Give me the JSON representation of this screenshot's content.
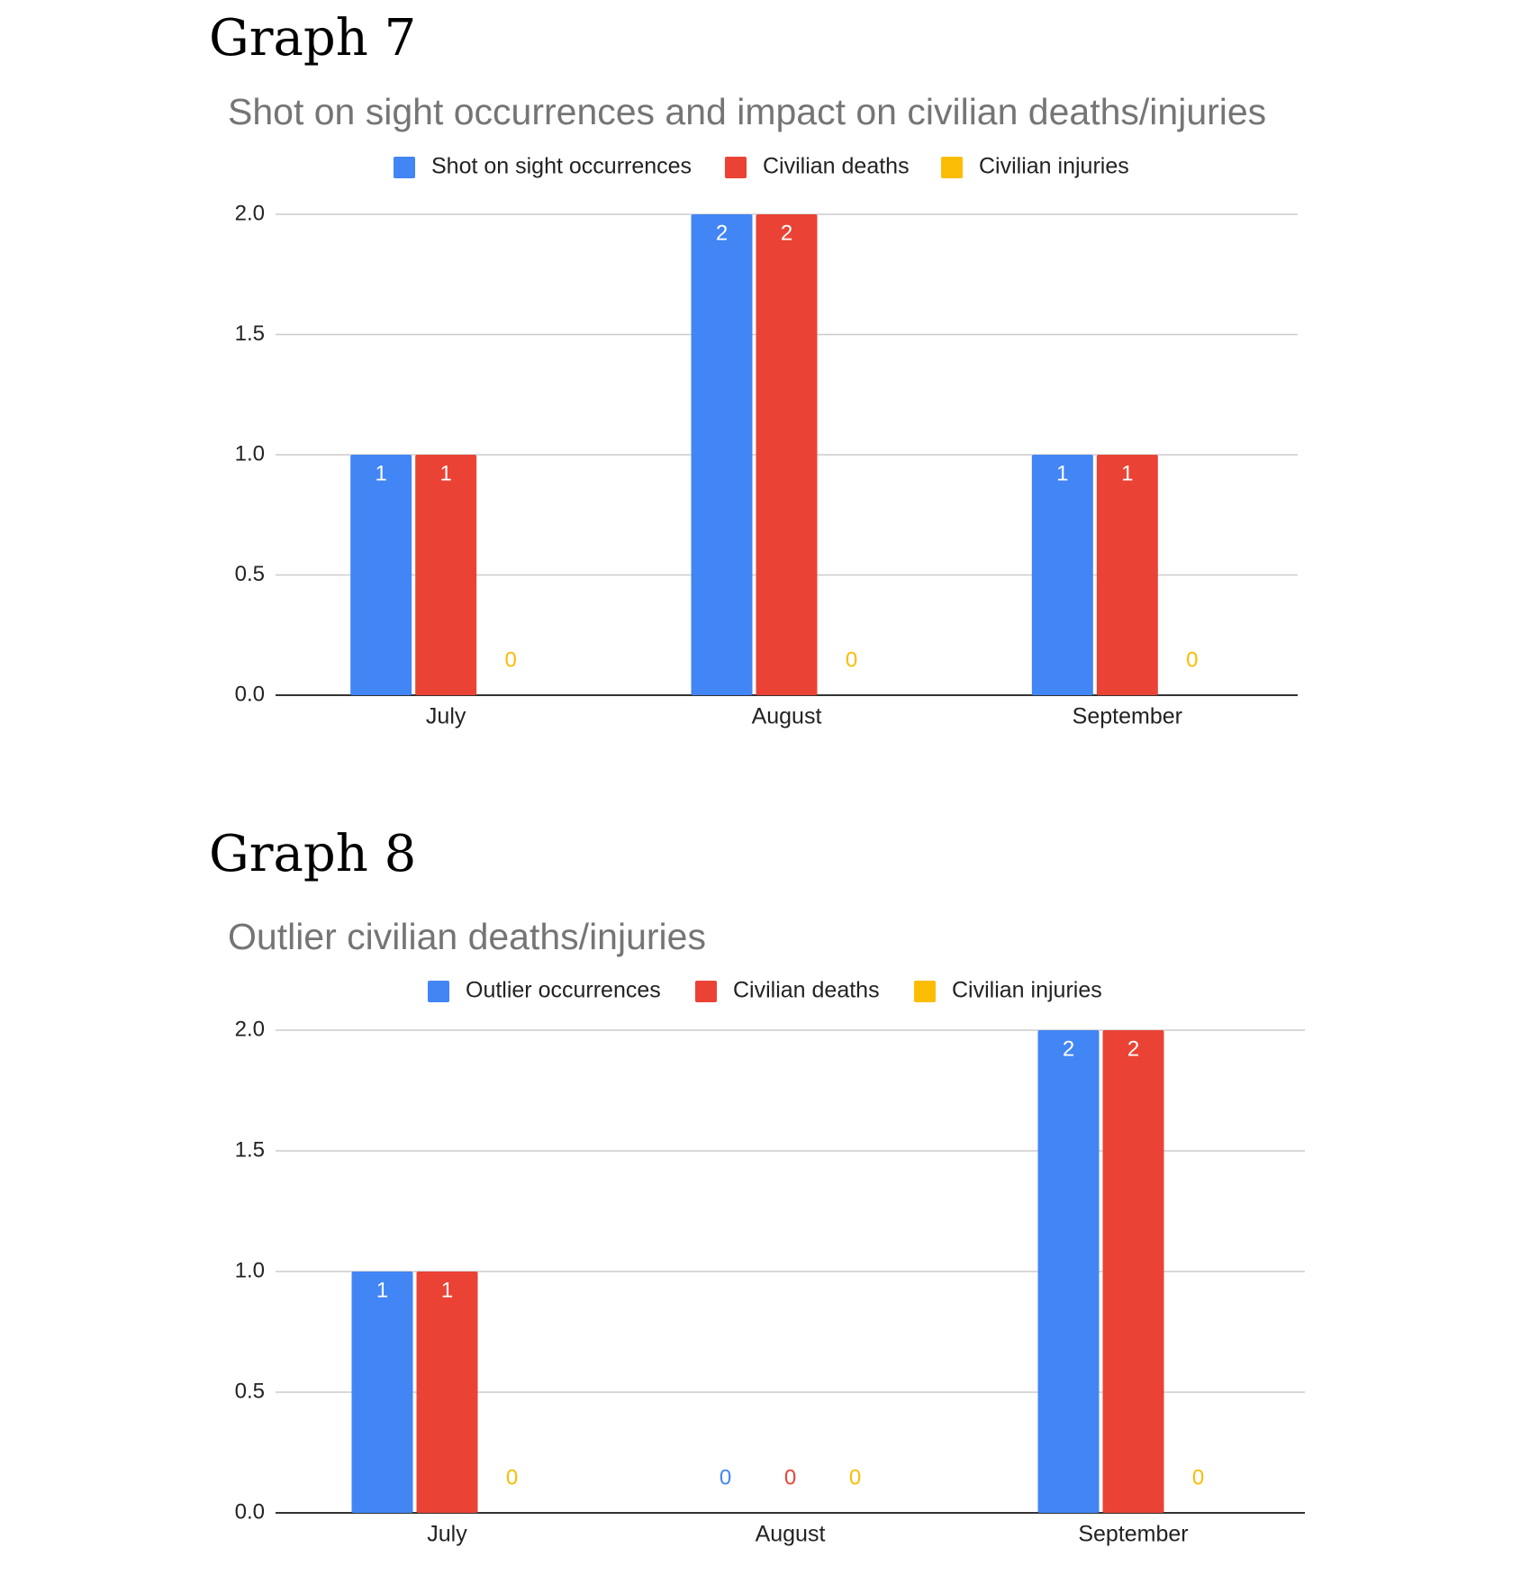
{
  "headings": {
    "graph7": "Graph 7",
    "graph8": "Graph 8"
  },
  "chart_data": [
    {
      "type": "bar",
      "title": "Shot on sight occurrences and impact on civilian deaths/injuries",
      "categories": [
        "July",
        "August",
        "September"
      ],
      "series": [
        {
          "name": "Shot on sight occurrences",
          "values": [
            1,
            2,
            1
          ],
          "color": "#4285F4"
        },
        {
          "name": "Civilian deaths",
          "values": [
            1,
            2,
            1
          ],
          "color": "#EA4335"
        },
        {
          "name": "Civilian injuries",
          "values": [
            0,
            0,
            0
          ],
          "color": "#FBBC04"
        }
      ],
      "ylim": [
        0,
        2
      ],
      "yticks": [
        "0.0",
        "0.5",
        "1.0",
        "1.5",
        "2.0"
      ],
      "grid": true,
      "legend": "top",
      "data_labels": true
    },
    {
      "type": "bar",
      "title": "Outlier civilian deaths/injuries",
      "categories": [
        "July",
        "August",
        "September"
      ],
      "series": [
        {
          "name": "Outlier occurrences",
          "values": [
            1,
            0,
            2
          ],
          "color": "#4285F4"
        },
        {
          "name": "Civilian deaths",
          "values": [
            1,
            0,
            2
          ],
          "color": "#EA4335"
        },
        {
          "name": "Civilian injuries",
          "values": [
            0,
            0,
            0
          ],
          "color": "#FBBC04"
        }
      ],
      "ylim": [
        0,
        2
      ],
      "yticks": [
        "0.0",
        "0.5",
        "1.0",
        "1.5",
        "2.0"
      ],
      "grid": true,
      "legend": "top",
      "data_labels": true
    }
  ]
}
